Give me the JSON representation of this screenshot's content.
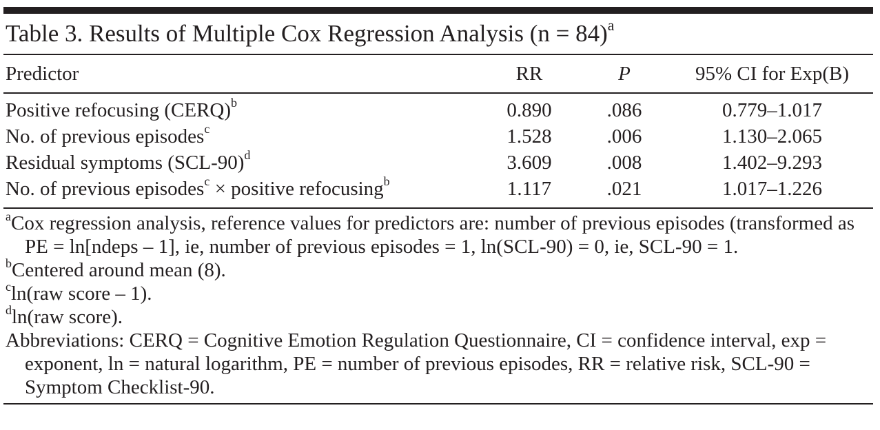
{
  "table": {
    "caption": "Table 3. Results of Multiple Cox Regression Analysis (n = 84)",
    "caption_note": "a",
    "columns": {
      "predictor": "Predictor",
      "rr": "RR",
      "p": "P",
      "ci": "95% CI for Exp(B)"
    },
    "rows": [
      {
        "pre": "Positive refocusing (CERQ)",
        "sup1": "b",
        "mid": "",
        "sup2": "",
        "rr": "0.890",
        "p": ".086",
        "ci": "0.779–1.017"
      },
      {
        "pre": "No. of previous episodes",
        "sup1": "c",
        "mid": "",
        "sup2": "",
        "rr": "1.528",
        "p": ".006",
        "ci": "1.130–2.065"
      },
      {
        "pre": "Residual symptoms (SCL-90)",
        "sup1": "d",
        "mid": "",
        "sup2": "",
        "rr": "3.609",
        "p": ".008",
        "ci": "1.402–9.293"
      },
      {
        "pre": "No. of previous episodes",
        "sup1": "c",
        "mid": " × positive refocusing",
        "sup2": "b",
        "rr": "1.117",
        "p": ".021",
        "ci": "1.017–1.226"
      }
    ],
    "footnotes": [
      {
        "mark": "a",
        "text": "Cox regression analysis, reference values for predictors are: number of previous episodes (transformed as PE = ln[ndeps – 1], ie, number of previous episodes = 1, ln(SCL-90) = 0, ie, SCL-90 = 1."
      },
      {
        "mark": "b",
        "text": "Centered around mean (8)."
      },
      {
        "mark": "c",
        "text": "ln(raw score – 1)."
      },
      {
        "mark": "d",
        "text": "ln(raw score)."
      },
      {
        "mark": "",
        "text": "Abbreviations: CERQ = Cognitive Emotion Regulation Questionnaire, CI = confidence interval, exp = exponent, ln = natural logarithm, PE = number of previous episodes, RR = relative risk, SCL-90 = Symptom Checklist-90."
      }
    ]
  }
}
